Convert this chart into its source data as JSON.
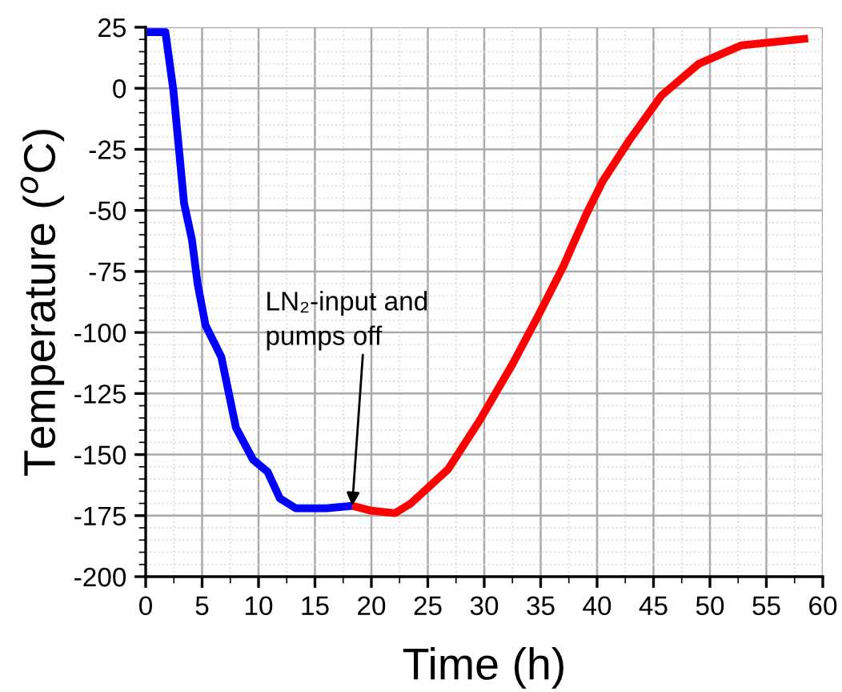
{
  "chart_data": {
    "type": "line",
    "xlabel": "Time (h)",
    "ylabel": "Temperature ($^{o}$C)",
    "xlim": [
      0,
      60
    ],
    "ylim": [
      -200,
      25
    ],
    "xticks": [
      0,
      5,
      10,
      15,
      20,
      25,
      30,
      35,
      40,
      45,
      50,
      55,
      60
    ],
    "yticks": [
      -200,
      -175,
      -150,
      -125,
      -100,
      -75,
      -50,
      -25,
      0,
      25
    ],
    "grid": true,
    "marker": "none",
    "line_style": "solid",
    "series": [
      {
        "color": "#0000ff",
        "x": [
          0.1,
          1.75,
          2.46,
          3.4,
          4.1,
          4.6,
          5.3,
          6.7,
          8.0,
          9.5,
          10.8,
          11.9,
          13.3,
          16,
          18.3
        ],
        "values": [
          23,
          23,
          -1,
          -47,
          -62,
          -80,
          -97,
          -110,
          -139,
          -152,
          -157,
          -168,
          -172,
          -172,
          -171
        ]
      },
      {
        "color": "#ff0000",
        "x": [
          18.3,
          20,
          22.1,
          23.5,
          26.8,
          29.6,
          32.5,
          34.8,
          37.0,
          39.1,
          40.5,
          42.9,
          45.7,
          49.0,
          52.8,
          58.7
        ],
        "values": [
          -171,
          -173,
          -174,
          -170,
          -156,
          -136,
          -113,
          -93,
          -73,
          -51,
          -38,
          -21,
          -3,
          10,
          17.6,
          20.4
        ]
      }
    ],
    "annotations": [
      {
        "text": "LN₂-input and\npumps off",
        "x": 18.3,
        "y": -171
      }
    ]
  }
}
